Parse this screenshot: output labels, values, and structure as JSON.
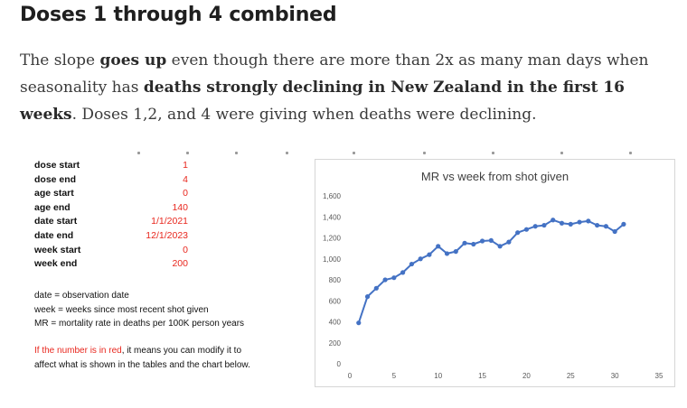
{
  "article": {
    "heading": "Doses 1 through 4 combined",
    "para": {
      "s1": "The slope ",
      "b1": "goes up",
      "s2": " even though there are more than 2x as many man days when seasonality has ",
      "b2": "deaths strongly declining in New Zealand in the first 16 weeks",
      "s3": ". Doses 1,2, and 4 were giving when deaths were declining."
    }
  },
  "params": [
    {
      "label": "dose start",
      "value": "1"
    },
    {
      "label": "dose end",
      "value": "4"
    },
    {
      "label": "age start",
      "value": "0"
    },
    {
      "label": "age end",
      "value": "140"
    },
    {
      "label": "date start",
      "value": "1/1/2021"
    },
    {
      "label": "date end",
      "value": "12/1/2023"
    },
    {
      "label": "week start",
      "value": "0"
    },
    {
      "label": "week end",
      "value": "200"
    }
  ],
  "notes": {
    "line1": "date = observation date",
    "line2": "week = weeks since most recent shot given",
    "line3": "MR = mortality rate in deaths per 100K person years",
    "red_part": "If the number is in red",
    "black_part": ", it means you can modify it to affect what is shown in the tables and the chart below."
  },
  "colors": {
    "red_value": "#e8271e",
    "series": "#4472c4"
  },
  "chart_data": {
    "type": "line",
    "title": "MR vs week from shot given",
    "xlabel": "",
    "ylabel": "",
    "xlim": [
      0,
      35
    ],
    "ylim": [
      0,
      1600
    ],
    "xticks": [
      0,
      5,
      10,
      15,
      20,
      25,
      30,
      35
    ],
    "yticks": [
      0,
      200,
      400,
      600,
      800,
      1000,
      1200,
      1400,
      1600
    ],
    "ytick_labels": [
      "0",
      "200",
      "400",
      "600",
      "800",
      "1,000",
      "1,200",
      "1,400",
      "1,600"
    ],
    "grid": false,
    "legend": "none",
    "x": [
      1,
      2,
      3,
      4,
      5,
      6,
      7,
      8,
      9,
      10,
      11,
      12,
      13,
      14,
      15,
      16,
      17,
      18,
      19,
      20,
      21,
      22,
      23,
      24,
      25,
      26,
      27,
      28,
      29,
      30,
      31
    ],
    "y": [
      390,
      640,
      720,
      800,
      820,
      870,
      950,
      1000,
      1040,
      1120,
      1050,
      1070,
      1150,
      1140,
      1170,
      1175,
      1120,
      1160,
      1250,
      1280,
      1310,
      1320,
      1370,
      1340,
      1330,
      1350,
      1360,
      1320,
      1310,
      1260,
      1330
    ]
  }
}
